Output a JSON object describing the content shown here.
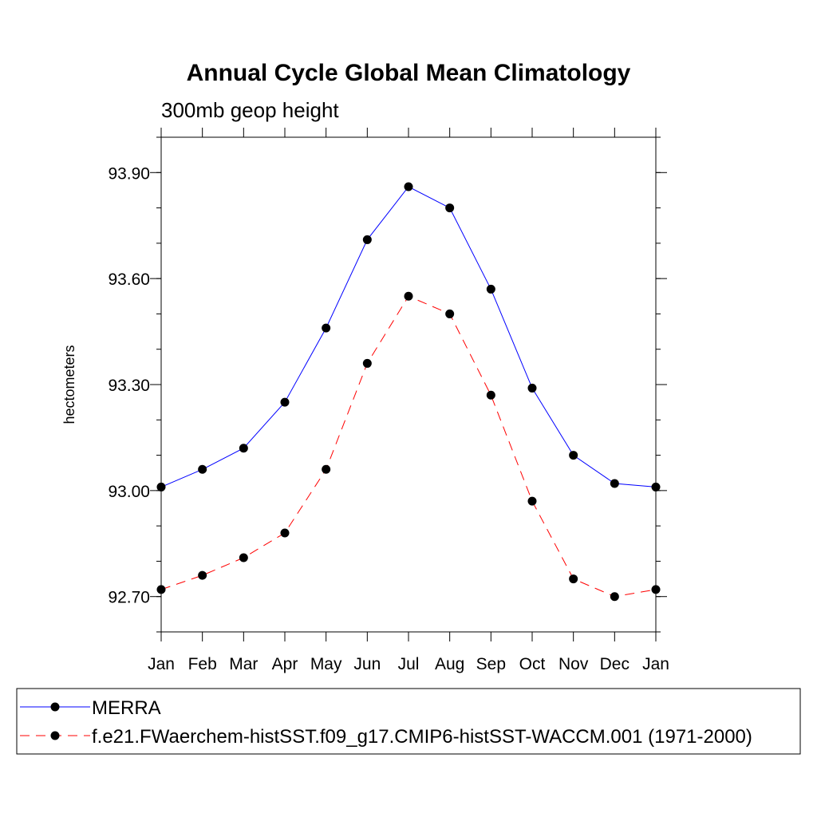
{
  "chart_data": {
    "type": "line",
    "title": "Annual Cycle Global Mean Climatology",
    "subtitle": "300mb geop height",
    "xlabel": "",
    "ylabel": "hectometers",
    "categories": [
      "Jan",
      "Feb",
      "Mar",
      "Apr",
      "May",
      "Jun",
      "Jul",
      "Aug",
      "Sep",
      "Oct",
      "Nov",
      "Dec",
      "Jan"
    ],
    "ylim": [
      92.6,
      94.0
    ],
    "yticks": [
      92.7,
      93.0,
      93.3,
      93.6,
      93.9
    ],
    "ytick_labels": [
      "92.70",
      "93.00",
      "93.30",
      "93.60",
      "93.90"
    ],
    "y_minor_step": 0.1,
    "grid": false,
    "legend_position": "bottom",
    "series": [
      {
        "name": "MERRA",
        "color": "#0000ff",
        "style": "solid",
        "values": [
          93.01,
          93.06,
          93.12,
          93.25,
          93.46,
          93.71,
          93.86,
          93.8,
          93.57,
          93.29,
          93.1,
          93.02,
          93.01
        ]
      },
      {
        "name": "f.e21.FWaerchem-histSST.f09_g17.CMIP6-histSST-WACCM.001 (1971-2000)",
        "color": "#ff0000",
        "style": "dashed",
        "values": [
          92.72,
          92.76,
          92.81,
          92.88,
          93.06,
          93.36,
          93.55,
          93.5,
          93.27,
          92.97,
          92.75,
          92.7,
          92.72
        ]
      }
    ]
  }
}
